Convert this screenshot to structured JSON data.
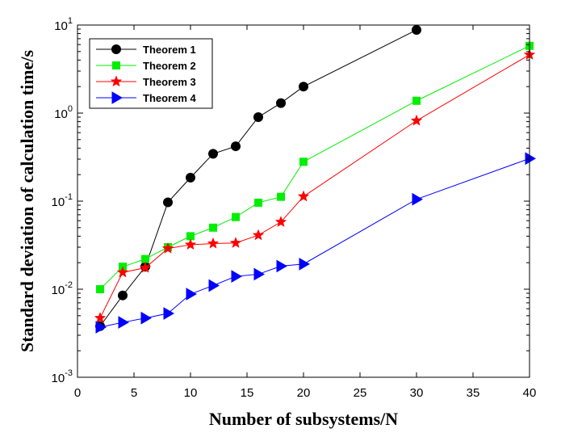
{
  "chart_data": {
    "type": "line",
    "xlabel": "Number of subsystems/N",
    "ylabel": "Standard deviation of calculation time/s",
    "xlim": [
      0,
      40
    ],
    "ylim": [
      0.001,
      10
    ],
    "yscale": "log",
    "grid": false,
    "legend_position": "top-left",
    "x_ticks": [
      "0",
      "5",
      "10",
      "15",
      "20",
      "25",
      "30",
      "35",
      "40"
    ],
    "y_ticks": [
      {
        "base": "10",
        "exp": "-3",
        "value": 0.001
      },
      {
        "base": "10",
        "exp": "-2",
        "value": 0.01
      },
      {
        "base": "10",
        "exp": "-1",
        "value": 0.1
      },
      {
        "base": "10",
        "exp": "0",
        "value": 1
      },
      {
        "base": "10",
        "exp": "1",
        "value": 10
      }
    ],
    "series": [
      {
        "name": "Theorem 1",
        "color": "#000000",
        "marker": "circle",
        "x": [
          2,
          4,
          6,
          8,
          10,
          12,
          14,
          16,
          18,
          20,
          30
        ],
        "y": [
          0.0038,
          0.0085,
          0.018,
          0.097,
          0.185,
          0.345,
          0.42,
          0.9,
          1.3,
          2.0,
          8.8
        ]
      },
      {
        "name": "Theorem 2",
        "color": "#00ee00",
        "marker": "square",
        "x": [
          2,
          4,
          6,
          8,
          10,
          12,
          14,
          16,
          18,
          20,
          30,
          40
        ],
        "y": [
          0.01,
          0.018,
          0.022,
          0.03,
          0.04,
          0.05,
          0.066,
          0.096,
          0.112,
          0.28,
          1.38,
          5.8
        ]
      },
      {
        "name": "Theorem 3",
        "color": "#ff0000",
        "marker": "star",
        "x": [
          2,
          4,
          6,
          8,
          10,
          12,
          14,
          16,
          18,
          20,
          30,
          40
        ],
        "y": [
          0.0047,
          0.0155,
          0.0175,
          0.029,
          0.032,
          0.033,
          0.0335,
          0.041,
          0.058,
          0.113,
          0.82,
          4.6
        ]
      },
      {
        "name": "Theorem 4",
        "color": "#0000ff",
        "marker": "triangle-right",
        "x": [
          2,
          4,
          6,
          8,
          10,
          12,
          14,
          16,
          18,
          20,
          30,
          40
        ],
        "y": [
          0.0037,
          0.0042,
          0.0047,
          0.0053,
          0.0088,
          0.011,
          0.014,
          0.0148,
          0.0183,
          0.0193,
          0.105,
          0.305
        ]
      }
    ]
  }
}
